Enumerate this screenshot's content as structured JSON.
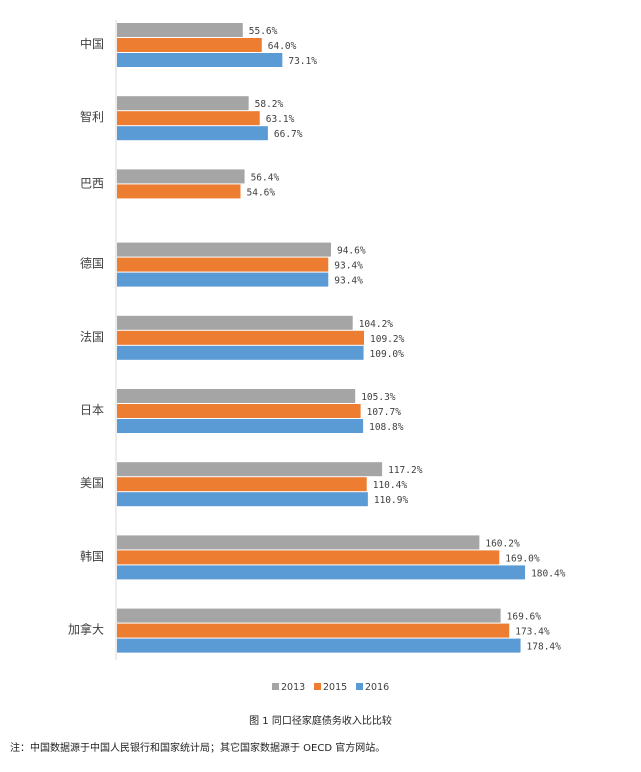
{
  "chart_data": {
    "type": "bar",
    "orientation": "horizontal",
    "categories": [
      "中国",
      "智利",
      "巴西",
      "德国",
      "法国",
      "日本",
      "美国",
      "韩国",
      "加拿大"
    ],
    "series": [
      {
        "name": "2013",
        "color": "#a5a5a5",
        "values": [
          55.6,
          58.2,
          56.4,
          94.6,
          104.2,
          105.3,
          117.2,
          160.2,
          169.6
        ],
        "labels": [
          "55.6%",
          "58.2%",
          "56.4%",
          "94.6%",
          "104.2%",
          "105.3%",
          "117.2%",
          "160.2%",
          "169.6%"
        ]
      },
      {
        "name": "2015",
        "color": "#ed7d31",
        "values": [
          64.0,
          63.1,
          54.6,
          93.4,
          109.2,
          107.7,
          110.4,
          169.0,
          173.4
        ],
        "labels": [
          "64.0%",
          "63.1%",
          "54.6%",
          "93.4%",
          "109.2%",
          "107.7%",
          "110.4%",
          "169.0%",
          "173.4%"
        ]
      },
      {
        "name": "2016",
        "color": "#5b9bd5",
        "values": [
          73.1,
          66.7,
          null,
          93.4,
          109.0,
          108.8,
          110.9,
          180.4,
          178.4
        ],
        "labels": [
          "73.1%",
          "66.7%",
          null,
          "93.4%",
          "109.0%",
          "108.8%",
          "110.9%",
          "180.4%",
          "178.4%"
        ]
      }
    ],
    "legend": {
      "position": "bottom",
      "entries": [
        "2013",
        "2015",
        "2016"
      ]
    },
    "xlim": [
      0,
      200
    ],
    "grid": false
  },
  "caption": {
    "title": "图 1 同口径家庭债务收入比比较",
    "note": "注：中国数据源于中国人民银行和国家统计局；其它国家数据源于 OECD 官方网站。"
  }
}
